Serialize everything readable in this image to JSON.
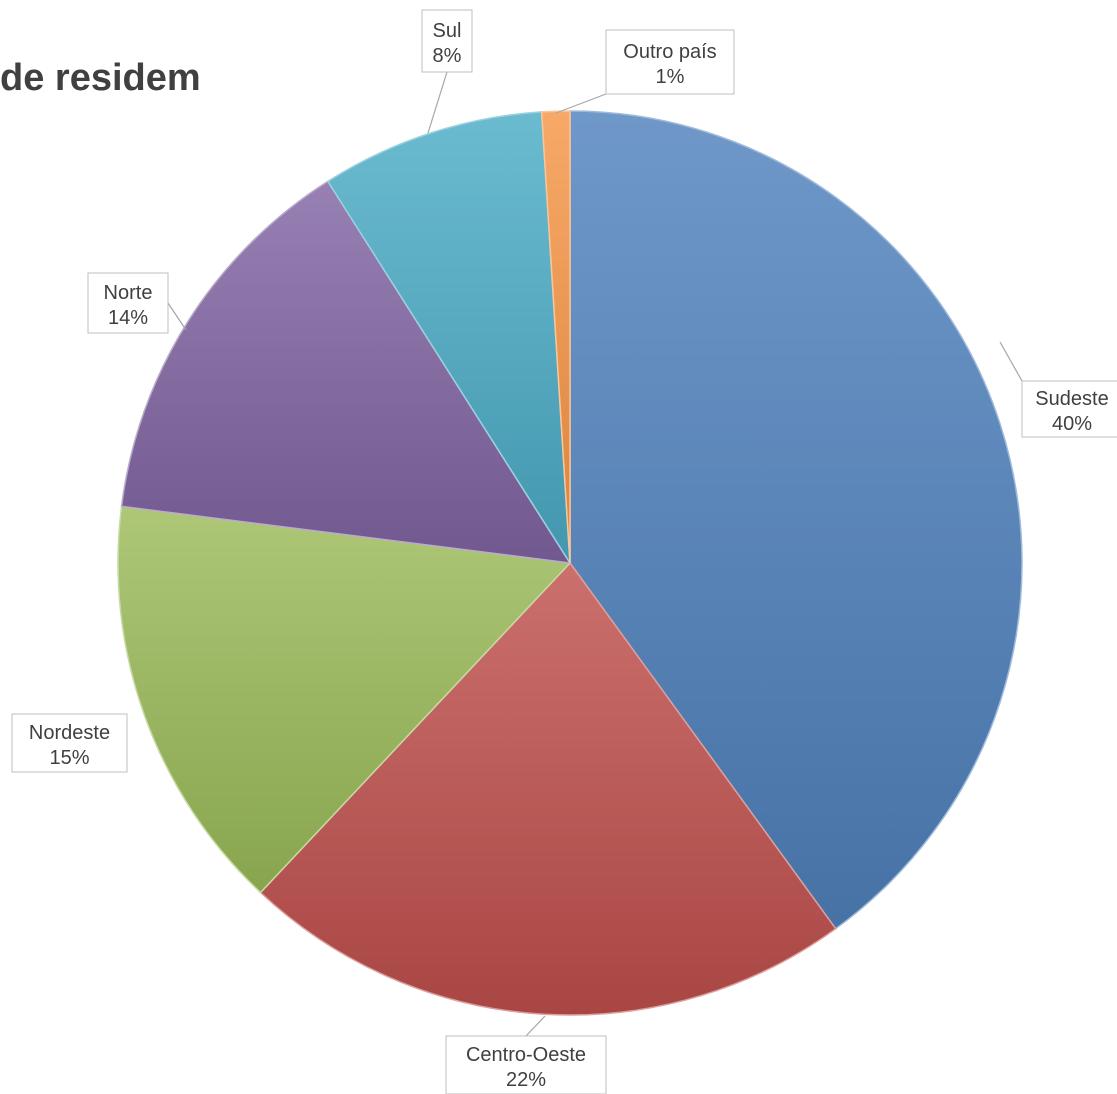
{
  "chart_data": {
    "type": "pie",
    "title": "de residem",
    "start_angle_deg": 0,
    "direction": "clockwise",
    "slices": [
      {
        "name": "Sudeste",
        "value": 40,
        "label": "40%",
        "color": "#4f81bd"
      },
      {
        "name": "Centro-Oeste",
        "value": 22,
        "label": "22%",
        "color": "#c0504d"
      },
      {
        "name": "Nordeste",
        "value": 15,
        "label": "15%",
        "color": "#9bbb59"
      },
      {
        "name": "Norte",
        "value": 14,
        "label": "14%",
        "color": "#8064a2"
      },
      {
        "name": "Sul",
        "value": 8,
        "label": "8%",
        "color": "#4bacc6"
      },
      {
        "name": "Outro país",
        "value": 1,
        "label": "1%",
        "color": "#f79646"
      }
    ],
    "legend": "none",
    "data_labels": "outside with leader lines",
    "style": "3D bevel gradient"
  }
}
